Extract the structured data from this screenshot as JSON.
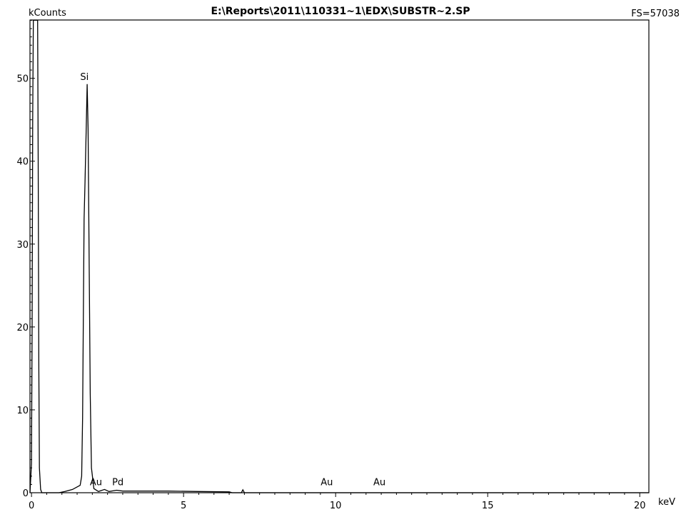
{
  "chart_data": {
    "type": "line",
    "title": "E:\\Reports\\2011\\110331~1\\EDX\\SUBSTR~2.SP",
    "ylabel": "kCounts",
    "xlabel": "keV",
    "full_scale": "FS=57038",
    "xlim": [
      -0.05,
      20.3
    ],
    "ylim": [
      0,
      57.038
    ],
    "x_ticks": [
      0,
      5,
      10,
      15,
      20
    ],
    "y_ticks": [
      0,
      10,
      20,
      30,
      40,
      50
    ],
    "x_tick_labels": [
      "0",
      "5",
      "10",
      "15",
      "20"
    ],
    "y_tick_labels": [
      "0",
      "10",
      "20",
      "30",
      "40",
      "50"
    ],
    "series": [
      {
        "points": [
          [
            -0.05,
            0.0
          ],
          [
            0.0,
            3.5
          ],
          [
            0.02,
            20.0
          ],
          [
            0.04,
            45.0
          ],
          [
            0.06,
            57.0
          ],
          [
            0.2,
            57.0
          ],
          [
            0.22,
            40.0
          ],
          [
            0.24,
            15.0
          ],
          [
            0.26,
            3.0
          ],
          [
            0.3,
            0.4
          ],
          [
            0.34,
            0.0
          ],
          [
            0.9,
            0.0
          ],
          [
            1.1,
            0.15
          ],
          [
            1.35,
            0.4
          ],
          [
            1.6,
            0.9
          ],
          [
            1.65,
            2.0
          ],
          [
            1.68,
            9.0
          ],
          [
            1.71,
            24.0
          ],
          [
            1.73,
            33.0
          ],
          [
            1.76,
            37.5
          ],
          [
            1.8,
            44.0
          ],
          [
            1.83,
            49.3
          ],
          [
            1.86,
            44.0
          ],
          [
            1.89,
            30.0
          ],
          [
            1.93,
            12.0
          ],
          [
            1.97,
            3.0
          ],
          [
            2.05,
            0.5
          ],
          [
            2.2,
            0.15
          ],
          [
            2.4,
            0.4
          ],
          [
            2.55,
            0.15
          ],
          [
            2.8,
            0.3
          ],
          [
            3.0,
            0.2
          ],
          [
            3.5,
            0.2
          ],
          [
            4.5,
            0.2
          ],
          [
            5.5,
            0.15
          ],
          [
            6.5,
            0.1
          ],
          [
            6.6,
            0.0
          ],
          [
            6.9,
            0.0
          ],
          [
            6.95,
            0.35
          ],
          [
            7.0,
            0.0
          ],
          [
            20.3,
            0.0
          ]
        ]
      }
    ],
    "annotations": [
      {
        "text": "Si",
        "x": 1.74,
        "y": 49.3
      },
      {
        "text": "Au",
        "x": 2.12,
        "y": 0.4
      },
      {
        "text": "Pd",
        "x": 2.84,
        "y": 0.4
      },
      {
        "text": "Au",
        "x": 9.71,
        "y": 0.4
      },
      {
        "text": "Au",
        "x": 11.44,
        "y": 0.4
      }
    ],
    "grid": false
  }
}
